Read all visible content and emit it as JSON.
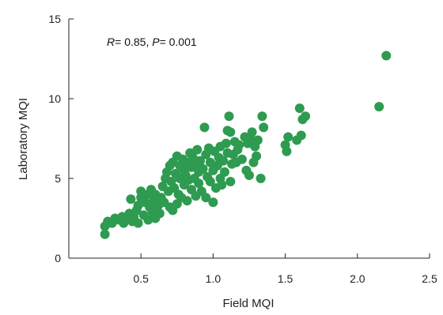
{
  "chart_data": {
    "type": "scatter",
    "title": "",
    "xlabel": "Field MQI",
    "ylabel": "Laboratory MQI",
    "xlim": [
      0,
      2.5
    ],
    "ylim": [
      0,
      15
    ],
    "xticks": [
      0.5,
      1.0,
      1.5,
      2.0,
      2.5
    ],
    "xtick_labels": [
      "0.5",
      "1.0",
      "1.5",
      "2.0",
      "2.5"
    ],
    "yticks": [
      0,
      5,
      10,
      15
    ],
    "ytick_labels": [
      "0",
      "5",
      "10",
      "15"
    ],
    "grid": false,
    "legend": "none",
    "annotation": {
      "r_label": "R",
      "r_text": "= 0.85, ",
      "p_label": "P",
      "p_text": "= 0.001"
    },
    "marker_color": "#2e9b50",
    "points": [
      {
        "x": 0.25,
        "y": 1.5
      },
      {
        "x": 0.25,
        "y": 2.0
      },
      {
        "x": 0.27,
        "y": 2.3
      },
      {
        "x": 0.3,
        "y": 2.2
      },
      {
        "x": 0.32,
        "y": 2.5
      },
      {
        "x": 0.35,
        "y": 2.4
      },
      {
        "x": 0.37,
        "y": 2.6
      },
      {
        "x": 0.38,
        "y": 2.2
      },
      {
        "x": 0.4,
        "y": 2.5
      },
      {
        "x": 0.42,
        "y": 2.8
      },
      {
        "x": 0.43,
        "y": 3.7
      },
      {
        "x": 0.44,
        "y": 2.3
      },
      {
        "x": 0.45,
        "y": 2.6
      },
      {
        "x": 0.47,
        "y": 3.0
      },
      {
        "x": 0.48,
        "y": 2.2
      },
      {
        "x": 0.48,
        "y": 3.3
      },
      {
        "x": 0.5,
        "y": 3.8
      },
      {
        "x": 0.5,
        "y": 4.2
      },
      {
        "x": 0.52,
        "y": 2.7
      },
      {
        "x": 0.53,
        "y": 3.5
      },
      {
        "x": 0.55,
        "y": 2.4
      },
      {
        "x": 0.55,
        "y": 4.0
      },
      {
        "x": 0.56,
        "y": 3.2
      },
      {
        "x": 0.57,
        "y": 4.3
      },
      {
        "x": 0.58,
        "y": 2.9
      },
      {
        "x": 0.59,
        "y": 3.6
      },
      {
        "x": 0.6,
        "y": 2.5
      },
      {
        "x": 0.6,
        "y": 4.0
      },
      {
        "x": 0.62,
        "y": 3.3
      },
      {
        "x": 0.63,
        "y": 2.8
      },
      {
        "x": 0.64,
        "y": 3.8
      },
      {
        "x": 0.65,
        "y": 4.5
      },
      {
        "x": 0.66,
        "y": 3.5
      },
      {
        "x": 0.67,
        "y": 5.0
      },
      {
        "x": 0.68,
        "y": 5.4
      },
      {
        "x": 0.69,
        "y": 4.2
      },
      {
        "x": 0.7,
        "y": 3.2
      },
      {
        "x": 0.7,
        "y": 5.8
      },
      {
        "x": 0.71,
        "y": 4.8
      },
      {
        "x": 0.72,
        "y": 3.0
      },
      {
        "x": 0.72,
        "y": 6.0
      },
      {
        "x": 0.73,
        "y": 4.4
      },
      {
        "x": 0.74,
        "y": 5.3
      },
      {
        "x": 0.75,
        "y": 3.4
      },
      {
        "x": 0.75,
        "y": 6.4
      },
      {
        "x": 0.76,
        "y": 4.0
      },
      {
        "x": 0.77,
        "y": 5.0
      },
      {
        "x": 0.77,
        "y": 5.8
      },
      {
        "x": 0.78,
        "y": 3.8
      },
      {
        "x": 0.79,
        "y": 6.2
      },
      {
        "x": 0.8,
        "y": 4.6
      },
      {
        "x": 0.8,
        "y": 5.5
      },
      {
        "x": 0.81,
        "y": 5.2
      },
      {
        "x": 0.82,
        "y": 3.6
      },
      {
        "x": 0.82,
        "y": 6.0
      },
      {
        "x": 0.83,
        "y": 4.9
      },
      {
        "x": 0.84,
        "y": 6.6
      },
      {
        "x": 0.85,
        "y": 5.7
      },
      {
        "x": 0.85,
        "y": 4.3
      },
      {
        "x": 0.86,
        "y": 6.3
      },
      {
        "x": 0.87,
        "y": 5.0
      },
      {
        "x": 0.88,
        "y": 3.9
      },
      {
        "x": 0.88,
        "y": 5.9
      },
      {
        "x": 0.89,
        "y": 6.8
      },
      {
        "x": 0.9,
        "y": 4.7
      },
      {
        "x": 0.9,
        "y": 5.4
      },
      {
        "x": 0.91,
        "y": 6.1
      },
      {
        "x": 0.92,
        "y": 4.2
      },
      {
        "x": 0.93,
        "y": 5.6
      },
      {
        "x": 0.94,
        "y": 8.2
      },
      {
        "x": 0.95,
        "y": 3.8
      },
      {
        "x": 0.95,
        "y": 6.5
      },
      {
        "x": 0.96,
        "y": 5.1
      },
      {
        "x": 0.97,
        "y": 6.9
      },
      {
        "x": 0.98,
        "y": 4.8
      },
      {
        "x": 0.98,
        "y": 6.0
      },
      {
        "x": 1.0,
        "y": 5.5
      },
      {
        "x": 1.0,
        "y": 3.5
      },
      {
        "x": 1.01,
        "y": 6.7
      },
      {
        "x": 1.02,
        "y": 4.4
      },
      {
        "x": 1.03,
        "y": 5.8
      },
      {
        "x": 1.04,
        "y": 6.3
      },
      {
        "x": 1.05,
        "y": 7.0
      },
      {
        "x": 1.05,
        "y": 5.0
      },
      {
        "x": 1.06,
        "y": 4.6
      },
      {
        "x": 1.07,
        "y": 6.1
      },
      {
        "x": 1.08,
        "y": 5.4
      },
      {
        "x": 1.09,
        "y": 7.2
      },
      {
        "x": 1.1,
        "y": 8.0
      },
      {
        "x": 1.1,
        "y": 6.6
      },
      {
        "x": 1.11,
        "y": 8.9
      },
      {
        "x": 1.12,
        "y": 4.8
      },
      {
        "x": 1.12,
        "y": 7.9
      },
      {
        "x": 1.13,
        "y": 5.9
      },
      {
        "x": 1.14,
        "y": 6.5
      },
      {
        "x": 1.15,
        "y": 7.3
      },
      {
        "x": 1.16,
        "y": 6.0
      },
      {
        "x": 1.17,
        "y": 6.8
      },
      {
        "x": 1.18,
        "y": 7.1
      },
      {
        "x": 1.2,
        "y": 6.2
      },
      {
        "x": 1.22,
        "y": 7.6
      },
      {
        "x": 1.23,
        "y": 5.5
      },
      {
        "x": 1.24,
        "y": 7.2
      },
      {
        "x": 1.25,
        "y": 5.2
      },
      {
        "x": 1.26,
        "y": 7.5
      },
      {
        "x": 1.27,
        "y": 7.9
      },
      {
        "x": 1.28,
        "y": 6.0
      },
      {
        "x": 1.29,
        "y": 7.0
      },
      {
        "x": 1.3,
        "y": 6.4
      },
      {
        "x": 1.31,
        "y": 7.4
      },
      {
        "x": 1.33,
        "y": 5.0
      },
      {
        "x": 1.34,
        "y": 8.9
      },
      {
        "x": 1.35,
        "y": 8.2
      },
      {
        "x": 1.5,
        "y": 7.1
      },
      {
        "x": 1.51,
        "y": 6.7
      },
      {
        "x": 1.52,
        "y": 7.6
      },
      {
        "x": 1.58,
        "y": 7.4
      },
      {
        "x": 1.6,
        "y": 9.4
      },
      {
        "x": 1.61,
        "y": 7.7
      },
      {
        "x": 1.62,
        "y": 8.7
      },
      {
        "x": 1.64,
        "y": 8.9
      },
      {
        "x": 2.15,
        "y": 9.5
      },
      {
        "x": 2.2,
        "y": 12.7
      }
    ]
  }
}
